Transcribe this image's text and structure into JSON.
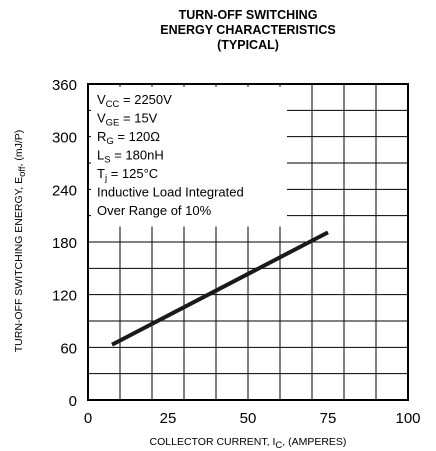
{
  "chart_data": {
    "type": "line",
    "title_lines": [
      "TURN-OFF SWITCHING",
      "ENERGY CHARACTERISTICS",
      "(TYPICAL)"
    ],
    "xlabel": {
      "main": "COLLECTOR CURRENT, I",
      "sub": "C",
      "post": ", (AMPERES)"
    },
    "ylabel": {
      "main": "TURN-OFF SWITCHING ENERGY, E",
      "sub": "off",
      "post": ", (mJ/P)"
    },
    "xlim": [
      0,
      100
    ],
    "ylim": [
      0,
      360
    ],
    "x_ticks": [
      0,
      25,
      50,
      75,
      100
    ],
    "y_ticks": [
      0,
      60,
      120,
      180,
      240,
      300,
      360
    ],
    "x_minor_step": 10,
    "y_minor_step": 30,
    "grid": true,
    "annotations": [
      {
        "main": "V",
        "sub": "CC",
        "post": " = 2250V"
      },
      {
        "main": "V",
        "sub": "GE",
        "post": " = 15V"
      },
      {
        "main": "R",
        "sub": "G",
        "post": " = 120Ω"
      },
      {
        "main": "L",
        "sub": "S",
        "post": " = 180nH"
      },
      {
        "main": "T",
        "sub": "j",
        "post": " = 125°C"
      },
      {
        "main": "Inductive Load Integrated",
        "sub": "",
        "post": ""
      },
      {
        "main": "Over Range of 10%",
        "sub": "",
        "post": ""
      }
    ],
    "series": [
      {
        "x": [
          7.5,
          75
        ],
        "y": [
          63,
          191
        ]
      }
    ],
    "colors": {
      "line": "#1a1a1a",
      "grid": "#000000",
      "background": "#ffffff"
    }
  }
}
